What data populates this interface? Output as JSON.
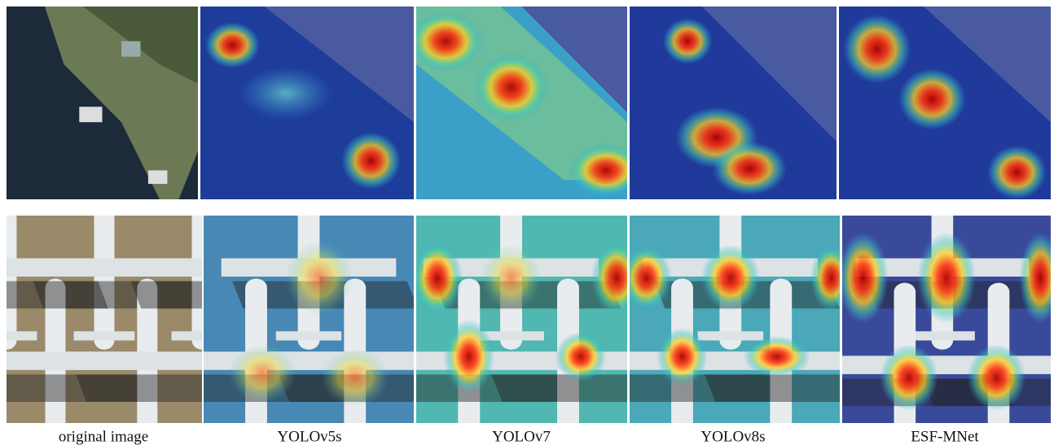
{
  "captions": [
    "original image",
    "YOLOv5s",
    "YOLOv7",
    "YOLOv8s",
    "ESF-MNet"
  ]
}
